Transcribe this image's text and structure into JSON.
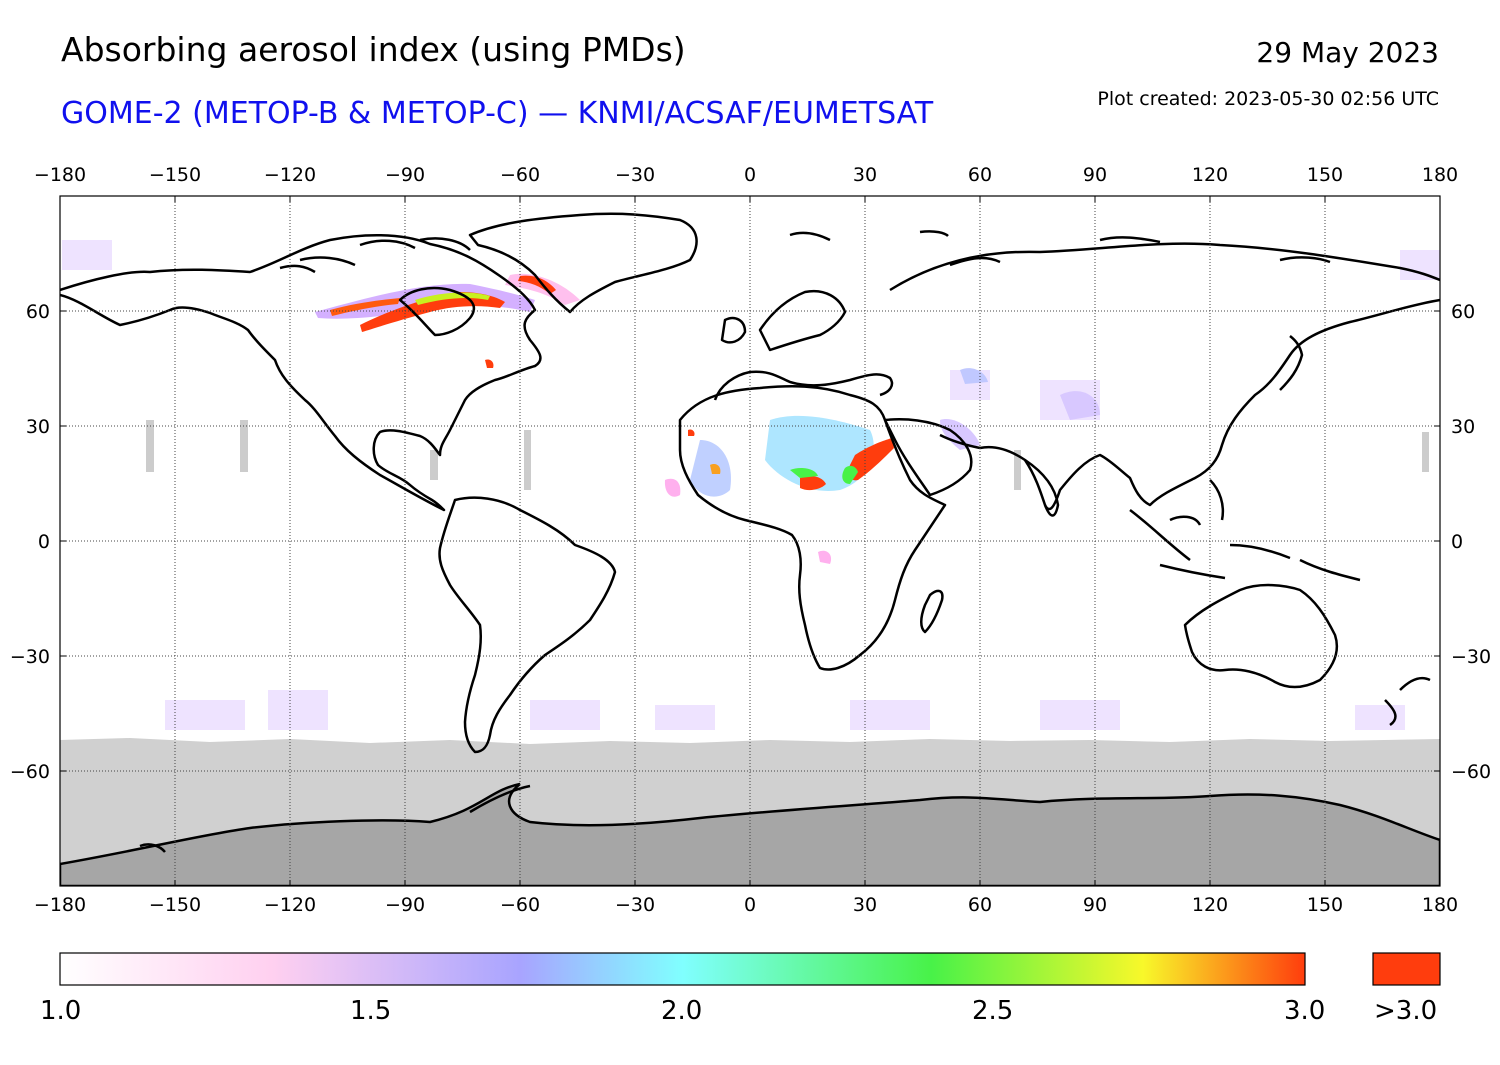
{
  "title": "Absorbing aerosol index (using PMDs)",
  "subtitle": "GOME-2 (METOP-B & METOP-C) — KNMI/ACSAF/EUMETSAT",
  "date": "29 May 2023",
  "plot_created": "Plot created: 2023-05-30 02:56 UTC",
  "map": {
    "projection": "equirectangular",
    "lon_range": [
      -180,
      180
    ],
    "lat_range": [
      -90,
      90
    ],
    "lon_ticks": [
      "−180",
      "−150",
      "−120",
      "−90",
      "−60",
      "−30",
      "0",
      "30",
      "60",
      "90",
      "120",
      "150",
      "180"
    ],
    "lat_ticks": [
      "60",
      "30",
      "0",
      "−30",
      "−60"
    ],
    "grid": true,
    "no_data_color": "#d0d0d0",
    "antarctica_color": "#a6a6a6"
  },
  "colorbar": {
    "min_label": "1.0",
    "labels": [
      "1.0",
      "1.5",
      "2.0",
      "2.5",
      "3.0"
    ],
    "overflow_label": ">3.0",
    "overflow_color": "#ff3d0d",
    "stops": [
      "#ffffff",
      "#ffd0f0",
      "#a8a4ff",
      "#80ffff",
      "#48f248",
      "#f8f82a",
      "#ff3d0d"
    ]
  }
}
